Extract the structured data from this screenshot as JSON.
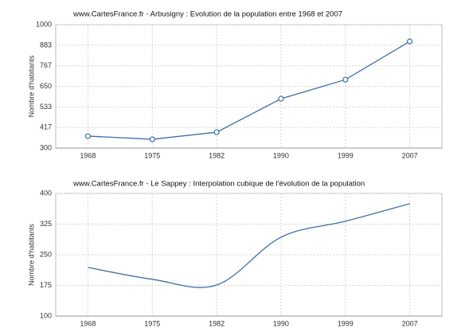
{
  "chart_data": [
    {
      "type": "line",
      "title": "www.CartesFrance.fr - Arbusigny : Evolution de la population entre 1968 et 2007",
      "y_label": "Nombre d'habitants",
      "categories": [
        "1968",
        "1975",
        "1982",
        "1990",
        "1999",
        "2007"
      ],
      "values": [
        368,
        350,
        390,
        580,
        688,
        905
      ],
      "color": "#3e6fa6",
      "markers": true,
      "ylim": [
        300,
        1000
      ],
      "yticks": [
        300,
        417,
        533,
        650,
        767,
        883,
        1000
      ],
      "grid": true
    },
    {
      "type": "spline",
      "title": "www.CartesFrance.fr - Le Sappey : Interpolation cubique de l'évolution de la population",
      "y_label": "Nombre d'habitants",
      "categories": [
        "1968",
        "1975",
        "1982",
        "1990",
        "1999",
        "2007"
      ],
      "values": [
        219,
        190,
        176,
        293,
        332,
        375
      ],
      "color": "#3e6fa6",
      "markers": false,
      "ylim": [
        100,
        400
      ],
      "yticks": [
        100,
        175,
        250,
        325,
        400
      ],
      "grid": true
    }
  ]
}
